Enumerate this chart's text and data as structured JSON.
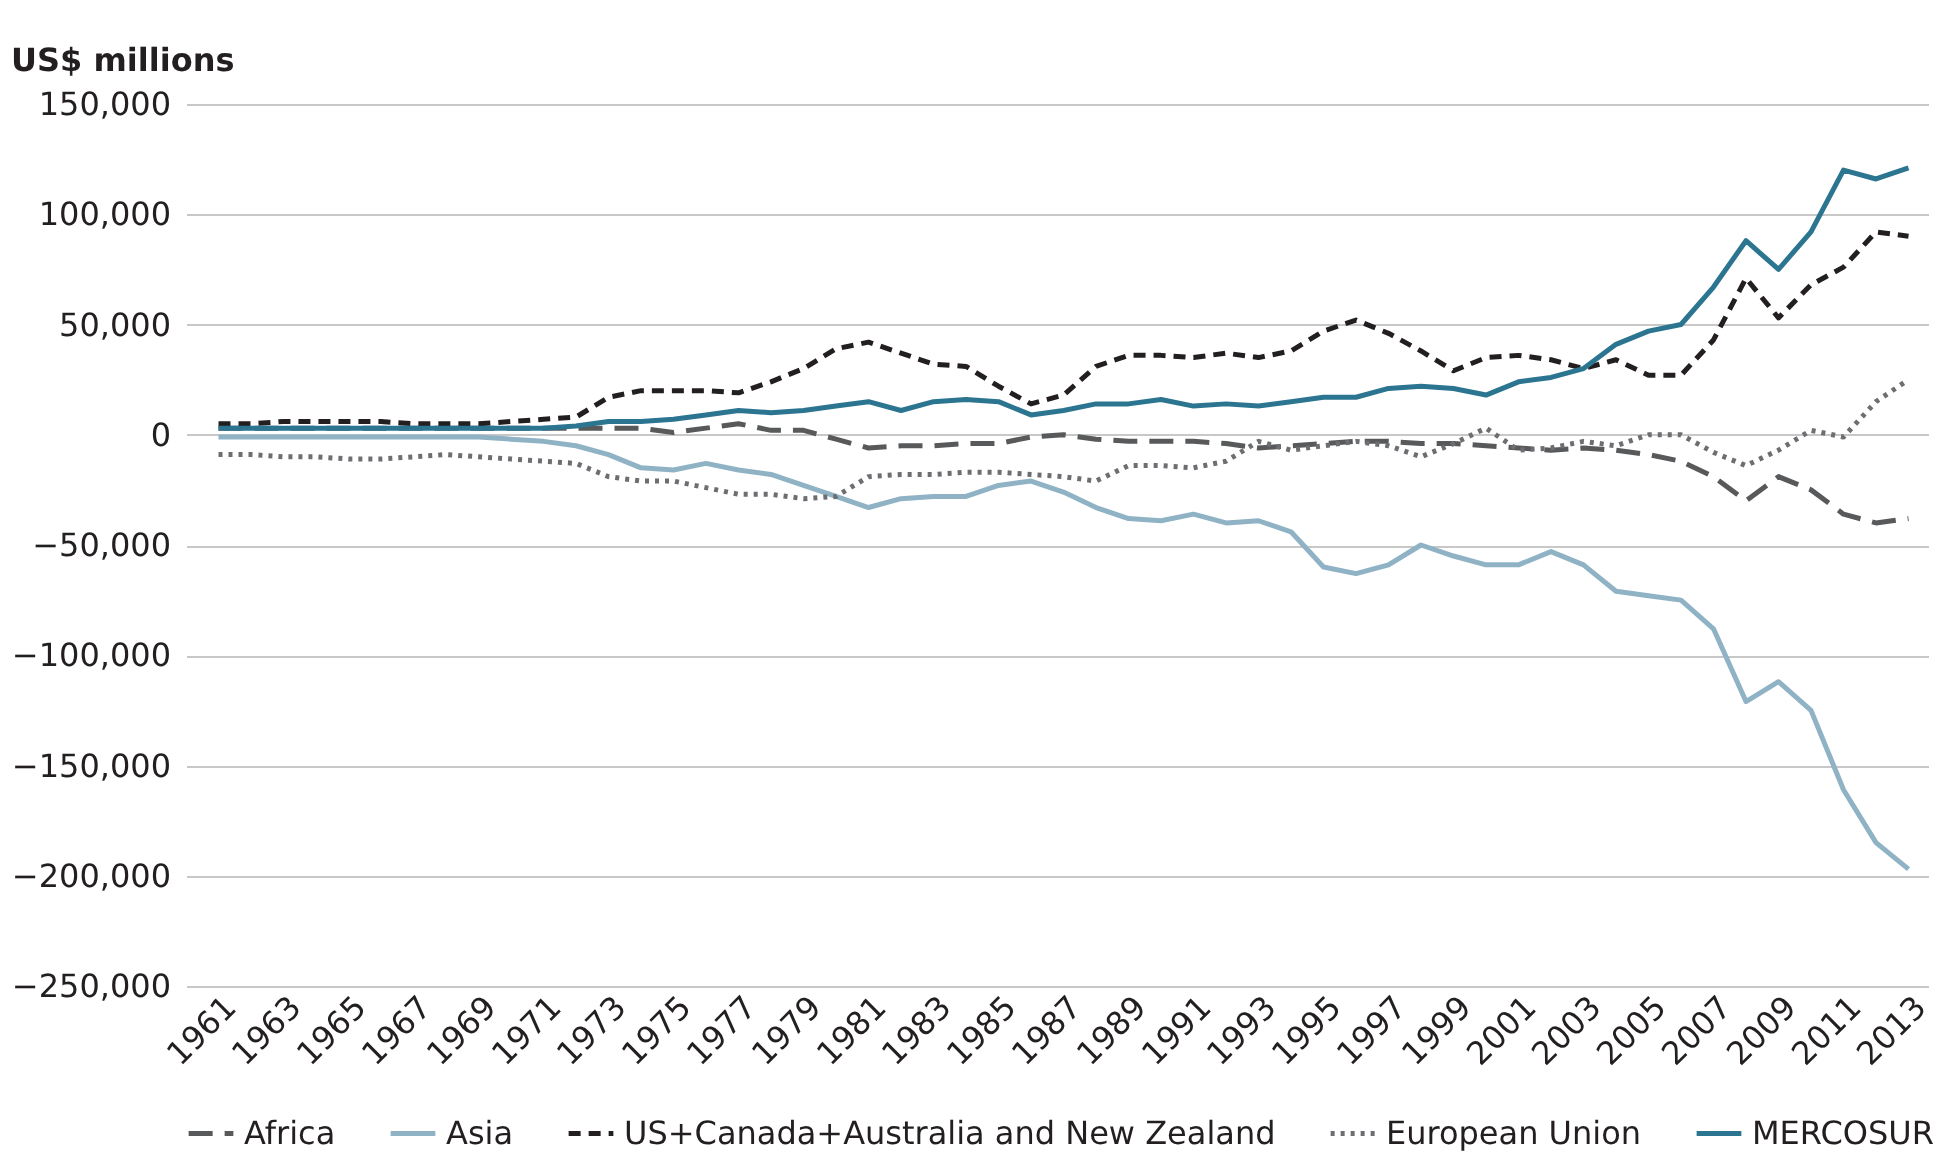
{
  "chart_data": {
    "type": "line",
    "ylabel": "US$ millions",
    "x": [
      1961,
      1962,
      1963,
      1964,
      1965,
      1966,
      1967,
      1968,
      1969,
      1970,
      1971,
      1972,
      1973,
      1974,
      1975,
      1976,
      1977,
      1978,
      1979,
      1980,
      1981,
      1982,
      1983,
      1984,
      1985,
      1986,
      1987,
      1988,
      1989,
      1990,
      1991,
      1992,
      1993,
      1994,
      1995,
      1996,
      1997,
      1998,
      1999,
      2000,
      2001,
      2002,
      2003,
      2004,
      2005,
      2006,
      2007,
      2008,
      2009,
      2010,
      2011,
      2012,
      2013
    ],
    "series": [
      {
        "name": "Africa",
        "color": "#58595b",
        "line_style": "longdash",
        "values": [
          3000,
          3000,
          3000,
          3000,
          3000,
          3000,
          3000,
          3000,
          3000,
          3000,
          3000,
          3000,
          3000,
          3000,
          1000,
          3000,
          5000,
          2000,
          2000,
          -2000,
          -6000,
          -5000,
          -5000,
          -4000,
          -4000,
          -1000,
          0,
          -2000,
          -3000,
          -3000,
          -3000,
          -4000,
          -6000,
          -5000,
          -4000,
          -3000,
          -3000,
          -4000,
          -4000,
          -5000,
          -6000,
          -7000,
          -6000,
          -7000,
          -9000,
          -12000,
          -19000,
          -30000,
          -19000,
          -25000,
          -36000,
          -40000,
          -38000
        ]
      },
      {
        "name": "Asia",
        "color": "#8fb3c5",
        "line_style": "solid",
        "values": [
          -1000,
          -1000,
          -1000,
          -1000,
          -1000,
          -1000,
          -1000,
          -1000,
          -1000,
          -2000,
          -3000,
          -5000,
          -9000,
          -15000,
          -16000,
          -13000,
          -16000,
          -18000,
          -23000,
          -28000,
          -33000,
          -29000,
          -28000,
          -28000,
          -23000,
          -21000,
          -26000,
          -33000,
          -38000,
          -39000,
          -36000,
          -40000,
          -39000,
          -44000,
          -60000,
          -63000,
          -59000,
          -50000,
          -55000,
          -59000,
          -59000,
          -53000,
          -59000,
          -71000,
          -73000,
          -75000,
          -88000,
          -121000,
          -112000,
          -125000,
          -161000,
          -185000,
          -197000
        ]
      },
      {
        "name": "US+Canada+Australia and New Zealand",
        "color": "#231f20",
        "line_style": "dashed",
        "values": [
          5000,
          5000,
          6000,
          6000,
          6000,
          6000,
          5000,
          5000,
          5000,
          6000,
          7000,
          8000,
          17000,
          20000,
          20000,
          20000,
          19000,
          24000,
          30000,
          39000,
          42000,
          37000,
          32000,
          31000,
          22000,
          14000,
          18000,
          31000,
          36000,
          36000,
          35000,
          37000,
          35000,
          38000,
          47000,
          52000,
          46000,
          38000,
          29000,
          35000,
          36000,
          34000,
          30000,
          34000,
          27000,
          27000,
          43000,
          71000,
          53000,
          68000,
          76000,
          92000,
          90000
        ]
      },
      {
        "name": "European Union",
        "color": "#6d6e71",
        "line_style": "dotted",
        "values": [
          -9000,
          -9000,
          -10000,
          -10000,
          -11000,
          -11000,
          -10000,
          -9000,
          -10000,
          -11000,
          -12000,
          -13000,
          -19000,
          -21000,
          -21000,
          -24000,
          -27000,
          -27000,
          -29000,
          -28000,
          -19000,
          -18000,
          -18000,
          -17000,
          -17000,
          -18000,
          -19000,
          -21000,
          -14000,
          -14000,
          -15000,
          -12000,
          -3000,
          -7000,
          -5000,
          -3000,
          -5000,
          -10000,
          -4000,
          3000,
          -7000,
          -6000,
          -3000,
          -5000,
          0,
          0,
          -8000,
          -14000,
          -7000,
          2000,
          -1000,
          15000,
          25000
        ]
      },
      {
        "name": "MERCOSUR",
        "color": "#2b7590",
        "line_style": "solid",
        "values": [
          3000,
          3000,
          3000,
          3000,
          3000,
          3000,
          3000,
          3000,
          3000,
          3000,
          3000,
          4000,
          6000,
          6000,
          7000,
          9000,
          11000,
          10000,
          11000,
          13000,
          15000,
          11000,
          15000,
          16000,
          15000,
          9000,
          11000,
          14000,
          14000,
          16000,
          13000,
          14000,
          13000,
          15000,
          17000,
          17000,
          21000,
          22000,
          21000,
          18000,
          24000,
          26000,
          30000,
          41000,
          47000,
          50000,
          67000,
          88000,
          75000,
          92000,
          120000,
          116000,
          121000
        ]
      }
    ],
    "xlim": [
      1960,
      2013.6
    ],
    "xticks": [
      1961,
      1963,
      1965,
      1967,
      1969,
      1971,
      1973,
      1975,
      1977,
      1979,
      1981,
      1983,
      1985,
      1987,
      1989,
      1991,
      1993,
      1995,
      1997,
      1999,
      2001,
      2003,
      2005,
      2007,
      2009,
      2011,
      2013
    ],
    "ylim": [
      -250000,
      150000
    ],
    "yticks": [
      {
        "value": -250000,
        "label": "−250,000"
      },
      {
        "value": -200000,
        "label": "−200,000"
      },
      {
        "value": -150000,
        "label": "−150,000"
      },
      {
        "value": -100000,
        "label": "−100,000"
      },
      {
        "value": -50000,
        "label": "−50,000"
      },
      0,
      {
        "value": 50000,
        "label": "50,000"
      },
      {
        "value": 100000,
        "label": "100,000"
      },
      {
        "value": 150000,
        "label": "150,000"
      }
    ],
    "grid": "y",
    "legend": "bottom",
    "marker": "none"
  }
}
